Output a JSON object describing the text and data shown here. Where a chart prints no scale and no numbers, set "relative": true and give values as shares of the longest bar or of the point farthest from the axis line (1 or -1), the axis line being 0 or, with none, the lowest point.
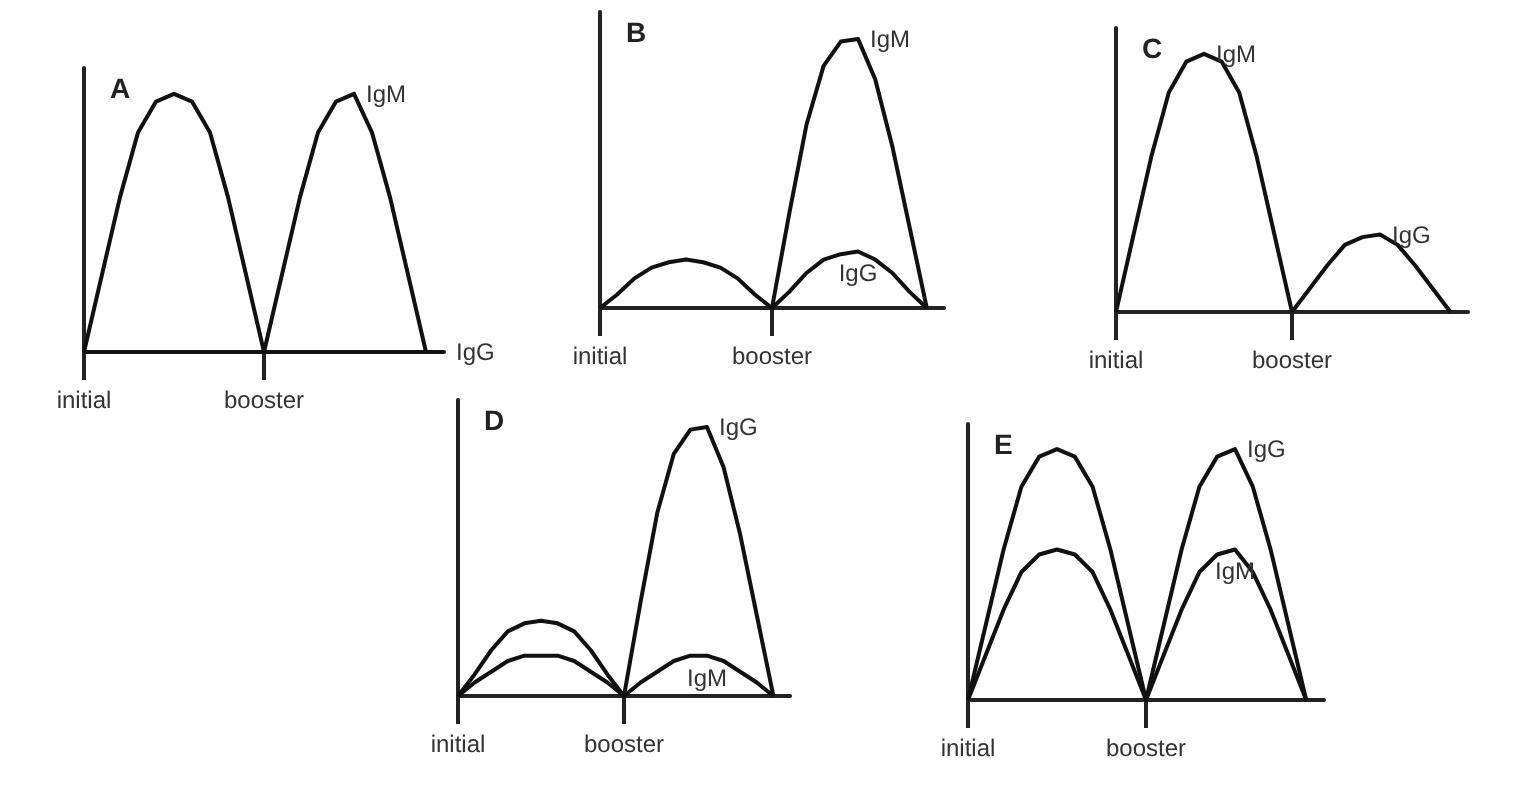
{
  "chart_data": [
    {
      "type": "line",
      "title": "A",
      "relative": true,
      "tick_labels": "x",
      "categories": [
        "initial",
        null,
        null,
        null,
        null,
        null,
        null,
        null,
        null,
        null,
        "booster",
        null,
        null,
        null,
        null,
        null,
        null,
        null,
        null,
        null,
        null
      ],
      "series": [
        {
          "name": "IgM",
          "color": "#111111",
          "values": [
            0,
            0.3,
            0.6,
            0.85,
            0.97,
            1,
            0.97,
            0.85,
            0.6,
            0.3,
            0,
            0.3,
            0.6,
            0.85,
            0.97,
            1,
            0.85,
            0.6,
            0.3,
            0,
            null
          ]
        },
        {
          "name": "IgG",
          "color": "#111111",
          "values": [
            0,
            0,
            0,
            0,
            0,
            0,
            0,
            0,
            0,
            0,
            0,
            0,
            0,
            0,
            0,
            0,
            0,
            0,
            0,
            0,
            0
          ]
        }
      ]
    },
    {
      "type": "line",
      "title": "B",
      "relative": true,
      "tick_labels": "x",
      "categories": [
        "initial",
        null,
        null,
        null,
        null,
        null,
        null,
        null,
        null,
        null,
        "booster",
        null,
        null,
        null,
        null,
        null,
        null,
        null,
        null,
        null,
        null
      ],
      "series": [
        {
          "name": "IgM",
          "color": "#111111",
          "values": [
            null,
            null,
            null,
            null,
            null,
            null,
            null,
            null,
            null,
            null,
            0,
            0.35,
            0.68,
            0.9,
            0.99,
            1,
            0.85,
            0.6,
            0.3,
            0,
            null
          ]
        },
        {
          "name": "IgG",
          "color": "#111111",
          "values": [
            0,
            0.05,
            0.11,
            0.15,
            0.17,
            0.18,
            0.17,
            0.15,
            0.11,
            0.05,
            0,
            0.06,
            0.13,
            0.18,
            0.2,
            0.21,
            0.18,
            0.13,
            0.06,
            0,
            null
          ]
        }
      ]
    },
    {
      "type": "line",
      "title": "C",
      "relative": true,
      "tick_labels": "x",
      "categories": [
        "initial",
        null,
        null,
        null,
        null,
        null,
        null,
        null,
        null,
        null,
        "booster",
        null,
        null,
        null,
        null,
        null,
        null,
        null,
        null,
        null,
        null
      ],
      "series": [
        {
          "name": "IgM",
          "color": "#111111",
          "values": [
            0,
            0.3,
            0.6,
            0.85,
            0.97,
            1,
            0.97,
            0.85,
            0.6,
            0.3,
            0,
            null,
            null,
            null,
            null,
            null,
            null,
            null,
            null,
            null,
            null
          ]
        },
        {
          "name": "IgG",
          "color": "#111111",
          "values": [
            null,
            null,
            null,
            null,
            null,
            null,
            null,
            null,
            null,
            null,
            0,
            0.09,
            0.18,
            0.26,
            0.29,
            0.3,
            0.26,
            0.18,
            0.09,
            0,
            null
          ]
        }
      ]
    },
    {
      "type": "line",
      "title": "D",
      "relative": true,
      "tick_labels": "x",
      "categories": [
        "initial",
        null,
        null,
        null,
        null,
        null,
        null,
        null,
        null,
        null,
        "booster",
        null,
        null,
        null,
        null,
        null,
        null,
        null,
        null,
        null,
        null
      ],
      "series": [
        {
          "name": "IgG",
          "color": "#111111",
          "values": [
            0,
            0.08,
            0.17,
            0.24,
            0.27,
            0.28,
            0.27,
            0.24,
            0.17,
            0.08,
            0,
            0.35,
            0.68,
            0.9,
            0.99,
            1,
            0.85,
            0.6,
            0.3,
            0,
            null
          ]
        },
        {
          "name": "IgM",
          "color": "#111111",
          "values": [
            0,
            0.05,
            0.09,
            0.13,
            0.15,
            0.15,
            0.15,
            0.13,
            0.09,
            0.05,
            0,
            0.05,
            0.09,
            0.13,
            0.15,
            0.15,
            0.13,
            0.09,
            0.05,
            0,
            null
          ]
        }
      ]
    },
    {
      "type": "line",
      "title": "E",
      "relative": true,
      "tick_labels": "x",
      "categories": [
        "initial",
        null,
        null,
        null,
        null,
        null,
        null,
        null,
        null,
        null,
        "booster",
        null,
        null,
        null,
        null,
        null,
        null,
        null,
        null,
        null,
        null
      ],
      "series": [
        {
          "name": "IgG",
          "color": "#111111",
          "values": [
            0,
            0.3,
            0.6,
            0.85,
            0.97,
            1,
            0.97,
            0.85,
            0.6,
            0.3,
            0,
            0.3,
            0.6,
            0.85,
            0.97,
            1,
            0.85,
            0.6,
            0.3,
            0,
            null
          ]
        },
        {
          "name": "IgM",
          "color": "#111111",
          "values": [
            0,
            0.18,
            0.36,
            0.51,
            0.58,
            0.6,
            0.58,
            0.51,
            0.36,
            0.18,
            0,
            0.18,
            0.36,
            0.51,
            0.58,
            0.6,
            0.51,
            0.36,
            0.18,
            0,
            null
          ]
        }
      ]
    }
  ]
}
